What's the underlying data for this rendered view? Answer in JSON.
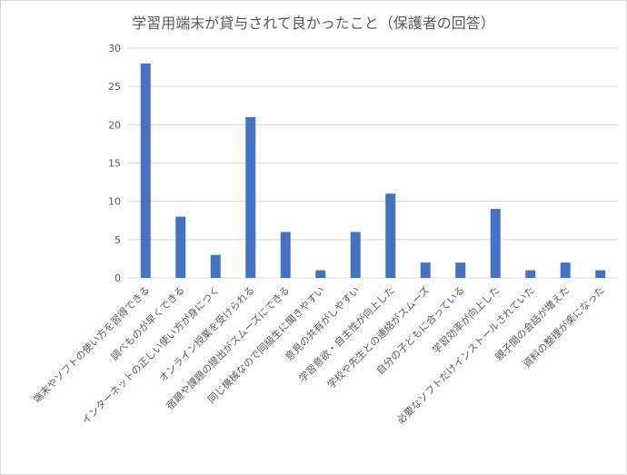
{
  "chart_data": {
    "type": "bar",
    "title": "学習用端末が貸与されて良かったこと（保護者の回答）",
    "xlabel": "",
    "ylabel": "",
    "ylim": [
      0,
      30
    ],
    "yticks": [
      0,
      5,
      10,
      15,
      20,
      25,
      30
    ],
    "grid": true,
    "legend": "none",
    "bar_color": "#4472c4",
    "categories": [
      "端末やソフトの使い方を習得できる",
      "調べものが早くできる",
      "インターネットの正しい使い方が身につく",
      "オンライン授業を受けられる",
      "宿題や課題の提出がスムーズにできる",
      "同じ機械なので同級生に聞きやすい",
      "意見の共有がしやすい",
      "学習意欲・自主性が向上した",
      "学校や先生との連絡がスムーズ",
      "自分の子どもに合っている",
      "学習効率が向上した",
      "必要なソフトだけインストールされていた",
      "親子間の会話が増えた",
      "資料の整理が楽になった"
    ],
    "values": [
      28,
      8,
      3,
      21,
      6,
      1,
      6,
      11,
      2,
      2,
      9,
      1,
      2,
      1
    ]
  }
}
